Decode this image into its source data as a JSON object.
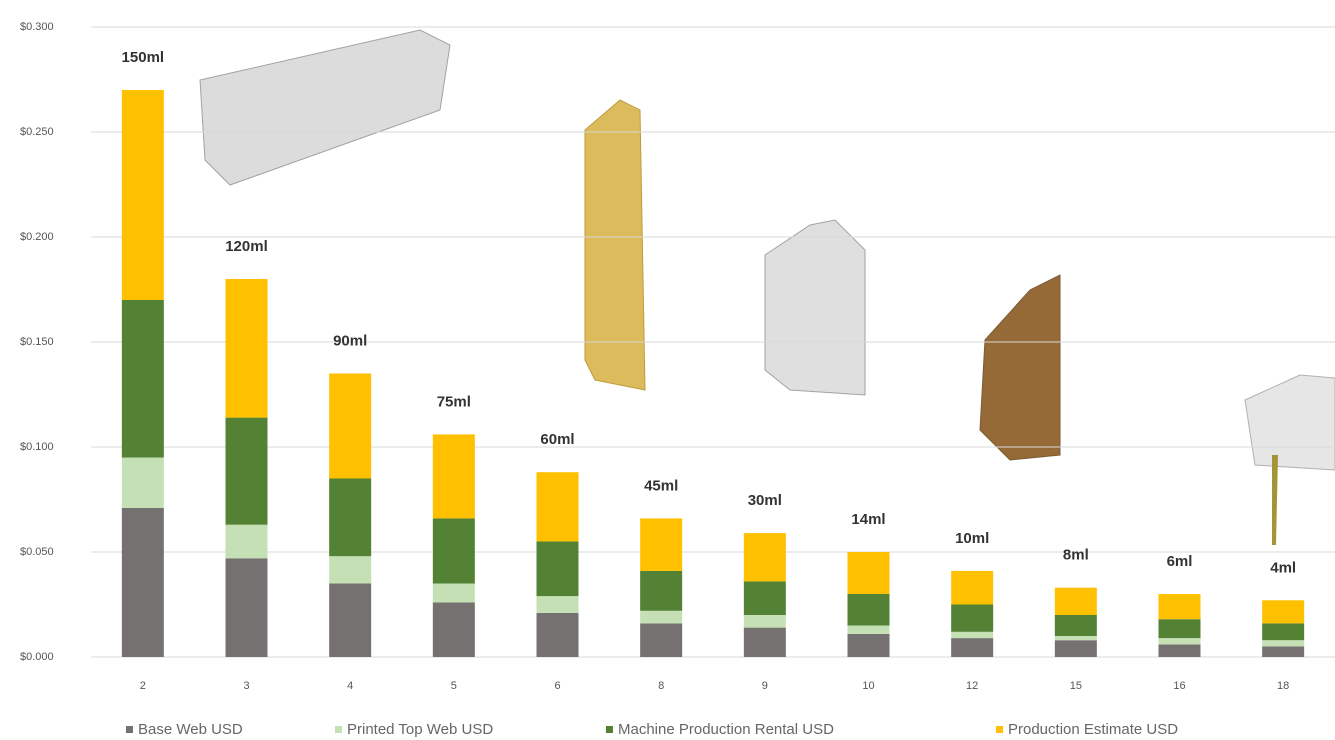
{
  "chart_data": {
    "type": "stacked_bar",
    "categories": [
      "2",
      "3",
      "4",
      "5",
      "6",
      "8",
      "9",
      "10",
      "12",
      "15",
      "16",
      "18"
    ],
    "bar_labels": [
      "150ml",
      "120ml",
      "90ml",
      "75ml",
      "60ml",
      "45ml",
      "30ml",
      "14ml",
      "10ml",
      "8ml",
      "6ml",
      "4ml"
    ],
    "series": [
      {
        "name": "Base Web USD",
        "color": "#767171",
        "values": [
          0.071,
          0.047,
          0.035,
          0.026,
          0.021,
          0.016,
          0.014,
          0.011,
          0.009,
          0.008,
          0.006,
          0.005
        ]
      },
      {
        "name": "Printed Top Web USD",
        "color": "#c5e0b4",
        "values": [
          0.024,
          0.016,
          0.013,
          0.009,
          0.008,
          0.006,
          0.006,
          0.004,
          0.003,
          0.002,
          0.003,
          0.003
        ]
      },
      {
        "name": "Machine Production Rental USD",
        "color": "#548235",
        "values": [
          0.075,
          0.051,
          0.037,
          0.031,
          0.026,
          0.019,
          0.016,
          0.015,
          0.013,
          0.01,
          0.009,
          0.008
        ]
      },
      {
        "name": "Production Estimate USD",
        "color": "#ffc000",
        "values": [
          0.1,
          0.066,
          0.05,
          0.04,
          0.033,
          0.025,
          0.023,
          0.02,
          0.016,
          0.013,
          0.012,
          0.011
        ]
      }
    ],
    "ylim": [
      0,
      0.3
    ],
    "yticks": [
      {
        "value": 0,
        "label": "$0.000"
      },
      {
        "value": 0.05,
        "label": "$0.050"
      },
      {
        "value": 0.1,
        "label": "$0.100"
      },
      {
        "value": 0.15,
        "label": "$0.150"
      },
      {
        "value": 0.2,
        "label": "$0.200"
      },
      {
        "value": 0.25,
        "label": "$0.250"
      },
      {
        "value": 0.3,
        "label": "$0.300"
      }
    ],
    "grid": true,
    "legend": "bottom"
  }
}
